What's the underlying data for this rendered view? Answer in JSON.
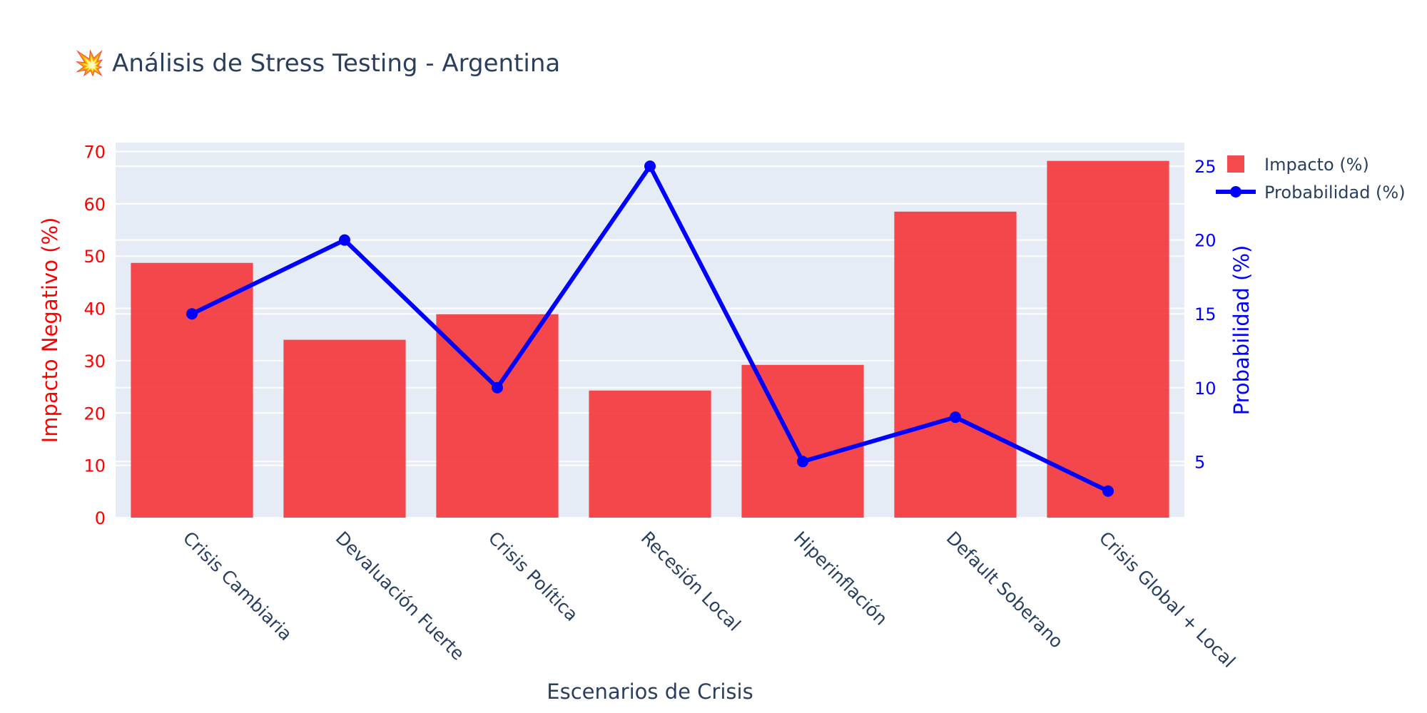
{
  "title": "💥 Análisis de Stress Testing - Argentina",
  "chart_data": {
    "type": "bar",
    "title": "💥 Análisis de Stress Testing - Argentina",
    "xlabel": "Escenarios de Crisis",
    "ylabel": "Impacto Negativo (%)",
    "y2label": "Probabilidad (%)",
    "categories": [
      "Crisis Cambiaria",
      "Devaluación Fuerte",
      "Crisis Política",
      "Recesión Local",
      "Hiperinflación",
      "Default Soberano",
      "Crisis Global + Local"
    ],
    "series": [
      {
        "name": "Impacto (%)",
        "type": "bar",
        "axis": "y",
        "color": "#f5353a",
        "values": [
          48.7,
          34.0,
          38.9,
          24.3,
          29.2,
          58.5,
          68.2
        ]
      },
      {
        "name": "Probabilidad (%)",
        "type": "line",
        "axis": "y2",
        "color": "#0000ff",
        "values": [
          15,
          20,
          10,
          25,
          5,
          8,
          3
        ]
      }
    ],
    "ylim": [
      0,
      71.7
    ],
    "y2lim": [
      1.2,
      26.6
    ],
    "yticks": [
      0,
      10,
      20,
      30,
      40,
      50,
      60,
      70
    ],
    "y2ticks": [
      5,
      10,
      15,
      20,
      25
    ],
    "grid": true,
    "legend_position": "top-right",
    "colors": {
      "plot_bg": "#e5ecf6",
      "grid": "#ffffff",
      "y_axis_text": "#ff0000",
      "y2_axis_text": "#0000ff",
      "text": "#2a3f5f"
    }
  }
}
